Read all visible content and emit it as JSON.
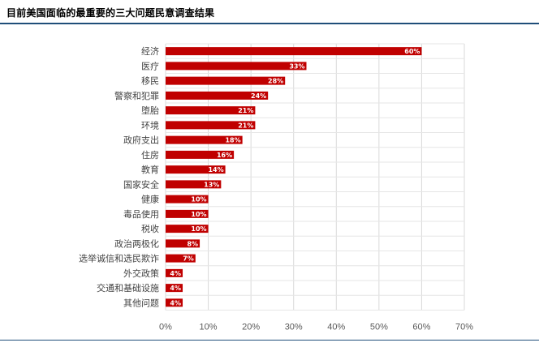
{
  "title": "目前美国面临的最重要的三大问题民意调查结果",
  "chart_data": {
    "type": "bar",
    "orientation": "horizontal",
    "categories": [
      "经济",
      "医疗",
      "移民",
      "警察和犯罪",
      "堕胎",
      "环境",
      "政府支出",
      "住房",
      "教育",
      "国家安全",
      "健康",
      "毒品使用",
      "税收",
      "政治两极化",
      "选举诚信和选民欺诈",
      "外交政策",
      "交通和基础设施",
      "其他问题"
    ],
    "values": [
      60,
      33,
      28,
      24,
      21,
      21,
      18,
      16,
      14,
      13,
      10,
      10,
      10,
      8,
      7,
      4,
      4,
      4
    ],
    "value_labels": [
      "60%",
      "33%",
      "28%",
      "24%",
      "21%",
      "21%",
      "18%",
      "16%",
      "14%",
      "13%",
      "10%",
      "10%",
      "10%",
      "8%",
      "7%",
      "4%",
      "4%",
      "4%"
    ],
    "xticks": [
      "0%",
      "10%",
      "20%",
      "30%",
      "40%",
      "50%",
      "60%",
      "70%"
    ],
    "xlim": [
      0,
      70
    ],
    "bar_color": "#c00000",
    "grid": true
  }
}
